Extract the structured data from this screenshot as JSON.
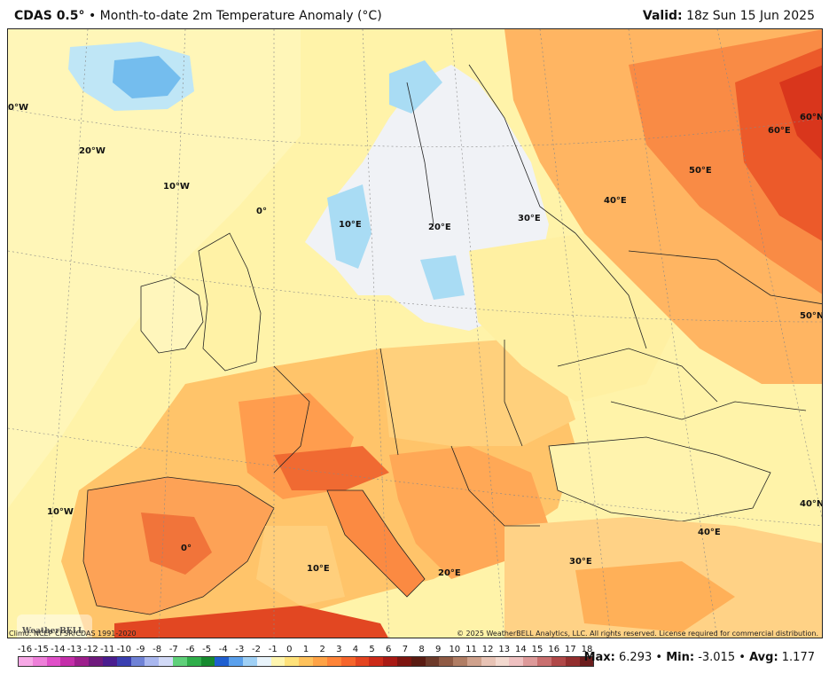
{
  "header": {
    "product": "CDAS 0.5°",
    "separator": "•",
    "description": "Month-to-date 2m Temperature Anomaly (°C)",
    "valid_label": "Valid:",
    "valid_time": "18z Sun 15 Jun 2025"
  },
  "footer": {
    "climo": "Climo: NCEP CFSR/CDAS 1991-2020",
    "copyright": "© 2025 WeatherBELL Analytics, LLC. All rights reserved. License required for commercial distribution.",
    "logo_text": "WeatherBELL"
  },
  "stats": {
    "max_label": "Max:",
    "max": "6.293",
    "min_label": "Min:",
    "min": "-3.015",
    "avg_label": "Avg:",
    "avg": "1.177",
    "sep": "•"
  },
  "colorbar": {
    "ticks": [
      "-16",
      "-15",
      "-14",
      "-13",
      "-12",
      "-11",
      "-10",
      "-9",
      "-8",
      "-7",
      "-6",
      "-5",
      "-4",
      "-3",
      "-2",
      "-1",
      "0",
      "1",
      "2",
      "3",
      "4",
      "5",
      "6",
      "7",
      "8",
      "9",
      "10",
      "11",
      "12",
      "13",
      "14",
      "15",
      "16",
      "17",
      "18"
    ],
    "colors": [
      "#f7a8e6",
      "#ee7fd9",
      "#e04fc8",
      "#c42ea9",
      "#9d1f8c",
      "#6f1a7d",
      "#4a1d8f",
      "#3a3fb0",
      "#6f82d6",
      "#a9b7ef",
      "#d2daf7",
      "#5fd07a",
      "#2fae4a",
      "#168a2f",
      "#1f5fd0",
      "#5aa0ec",
      "#9fd0f5",
      "#e9f4fb",
      "#fff6b0",
      "#ffe27a",
      "#ffc25c",
      "#ffa346",
      "#ff8438",
      "#f6652b",
      "#e44420",
      "#cc2a18",
      "#a91a14",
      "#7d1510",
      "#5a1b12",
      "#6d3a2a",
      "#8f5a44",
      "#b07d64",
      "#cfa18c",
      "#e8c3b5",
      "#f3d9cf",
      "#eec0c0",
      "#dd9999",
      "#c96f6f",
      "#b04848",
      "#922e2e",
      "#6c1d1d"
    ],
    "color_bins": 41
  },
  "map": {
    "lon_labels": [
      "20°W",
      "10°W",
      "0°",
      "10°E",
      "20°E",
      "30°E",
      "40°E",
      "50°E",
      "60°E"
    ],
    "lat_labels": [
      "60°N",
      "50°N",
      "40°N"
    ],
    "bottom_labels": [
      "10°W",
      "0°",
      "10°E",
      "20°E",
      "30°E",
      "40°E"
    ],
    "left_label": "0°W",
    "colors": {
      "ocean_pale": "#fff6b0",
      "light_yellow": "#fdefa0",
      "light_orange": "#ffd27a",
      "orange": "#ffac58",
      "dark_orange": "#f8843e",
      "red": "#ec5a2a",
      "deep_red": "#d9361c",
      "pale_blue": "#c7ecf7",
      "blue": "#7fc7f0",
      "white": "#f3f4f6"
    }
  }
}
